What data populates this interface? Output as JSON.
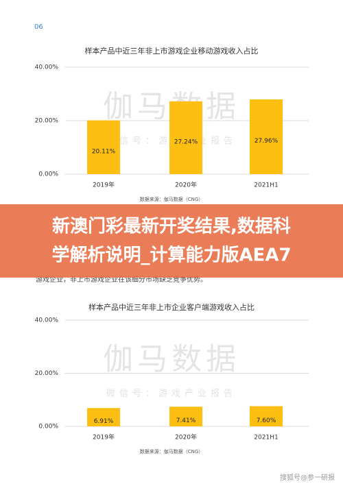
{
  "page_number": "06",
  "paragraph": [
    "游戏企业，非上市游戏企业在该细分市场缺乏竞争优势。"
  ],
  "banner_title": [
    "新澳门彩最新开奖结果,数据科",
    "学解析说明_计算能力版AEA7"
  ],
  "credit": "搜狐号@参一研报",
  "chart_data": [
    {
      "type": "bar",
      "title": "样本产品中近三年非上市游戏企业移动游戏收入占比",
      "categories": [
        "2019年",
        "2020年",
        "2021H1"
      ],
      "values": [
        20.11,
        27.24,
        27.96
      ],
      "value_labels": [
        "20.11%",
        "27.24%",
        "27.96%"
      ],
      "color": "#fcbf12",
      "ylim": [
        0,
        40
      ],
      "yticks": [
        {
          "value": 0,
          "label": "0.00%"
        },
        {
          "value": 20,
          "label": "20.00%"
        },
        {
          "value": 40,
          "label": "40.00%"
        }
      ],
      "grid": true,
      "source": "数据来源：伽马数据（CNG）",
      "watermark": "伽马数据",
      "watermark_sub": "微信号：游戏产业报告"
    },
    {
      "type": "bar",
      "title": "样本产品中近三年非上市企业客户端游戏收入占比",
      "categories": [
        "2019年",
        "2020年",
        "2021H1"
      ],
      "values": [
        6.91,
        7.41,
        7.6
      ],
      "value_labels": [
        "6.91%",
        "7.41%",
        "7.60%"
      ],
      "color": "#fcbf12",
      "ylim": [
        0,
        40
      ],
      "yticks": [
        {
          "value": 0,
          "label": "0.00%"
        },
        {
          "value": 20,
          "label": "20.00%"
        },
        {
          "value": 40,
          "label": "40.00%"
        }
      ],
      "grid": true,
      "source": "数据来源：伽马数据（CNG）",
      "watermark": "伽马数据",
      "watermark_sub": "微信号：游戏产业报告"
    }
  ]
}
